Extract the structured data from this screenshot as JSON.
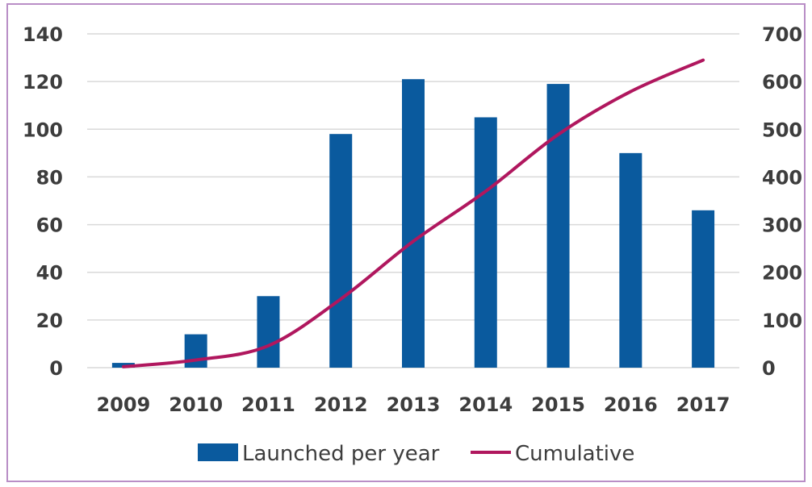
{
  "chart_data": {
    "type": "bar",
    "categories": [
      "2009",
      "2010",
      "2011",
      "2012",
      "2013",
      "2014",
      "2015",
      "2016",
      "2017"
    ],
    "series": [
      {
        "name": "Launched per year",
        "type": "bar",
        "axis": "left",
        "color": "#0a5a9e",
        "values": [
          2,
          14,
          30,
          98,
          121,
          105,
          119,
          90,
          66
        ]
      },
      {
        "name": "Cumulative",
        "type": "line",
        "axis": "right",
        "color": "#b0175e",
        "values": [
          2,
          16,
          46,
          144,
          265,
          370,
          489,
          579,
          645
        ]
      }
    ],
    "y_left": {
      "min": 0,
      "max": 140,
      "ticks": [
        "0",
        "20",
        "40",
        "60",
        "80",
        "100",
        "120",
        "140"
      ]
    },
    "y_right": {
      "min": 0,
      "max": 700,
      "ticks": [
        "0",
        "100",
        "200",
        "300",
        "400",
        "500",
        "600",
        "700"
      ]
    },
    "grid": true,
    "legend_position": "bottom",
    "title": "",
    "xlabel": "",
    "ylabel": ""
  }
}
